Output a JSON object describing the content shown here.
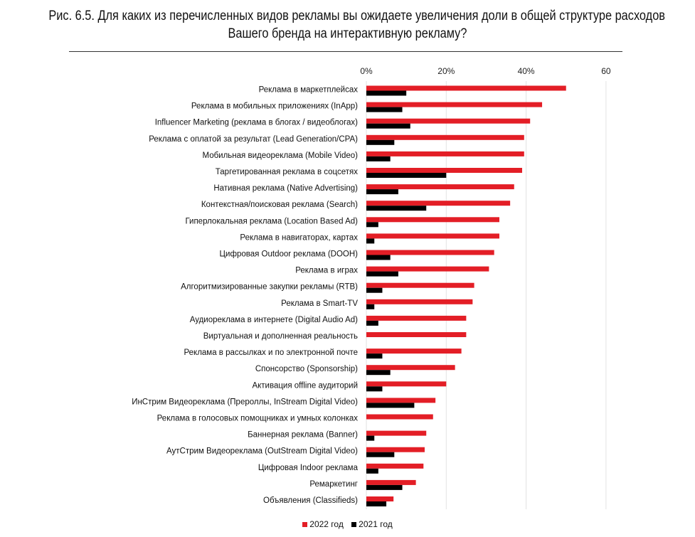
{
  "chart_data": {
    "type": "bar",
    "orientation": "horizontal",
    "title": "Рис. 6.5. Для каких из перечисленных видов рекламы вы ожидаете увеличения доли в общей структуре расходов Вашего бренда на интерактивную рекламу?",
    "title_lines": [
      "Рис. 6.5. Для каких из перечисленных видов рекламы вы ожидаете увеличения доли в общей структуре расходов",
      "Вашего бренда на интерактивную рекламу?"
    ],
    "xlim": [
      0,
      60
    ],
    "x_ticks": [
      "0%",
      "20%",
      "40%",
      "60"
    ],
    "x_tick_values": [
      0,
      20,
      40,
      60
    ],
    "grid": true,
    "legend_position": "bottom",
    "categories": [
      "Реклама в маркетплейсах",
      "Реклама в мобильных приложениях (InApp)",
      "Influencer Marketing (реклама в блогах / видеоблогах)",
      "Реклама с оплатой за результат (Lead Generation/CPA)",
      "Мобильная видеореклама (Mobile Video)",
      "Таргетированная реклама в соцсетях",
      "Нативная реклама (Native Advertising)",
      "Контекстная/поисковая реклама (Search)",
      "Гиперлокальная реклама (Location Based Ad)",
      "Реклама в навигаторах, картах",
      "Цифровая Outdoor реклама (DOOH)",
      "Реклама в играх",
      "Алгоритмизированные закупки рекламы (RTB)",
      "Реклама в Smart-TV",
      "Аудиореклама в интернете (Digital Audio Ad)",
      "Виртуальная и дополненная реальность",
      "Реклама в рассылках и по электронной почте",
      "Спонсорство (Sponsorship)",
      "Активация offline аудиторий",
      "ИнСтрим Видеореклама (Прероллы, InStream Digital Video)",
      "Реклама в голосовых помощниках и умных колонках",
      "Баннерная реклама (Banner)",
      "АутСтрим Видеореклама (OutStream Digital Video)",
      "Цифровая Indoor реклама",
      "Ремаркетинг",
      "Объявления (Classifieds)"
    ],
    "series": [
      {
        "name": "2022 год",
        "color": "#e31e26",
        "values": [
          50,
          44,
          41,
          39.5,
          39.5,
          39,
          37,
          36,
          33.3,
          33.3,
          32,
          30.7,
          27,
          26.6,
          25,
          25,
          23.8,
          22.2,
          20,
          17.3,
          16.7,
          15,
          14.6,
          14.3,
          12.4,
          6.8
        ]
      },
      {
        "name": "2021 год",
        "color": "#000000",
        "values": [
          10,
          9,
          11,
          7,
          6,
          20,
          8,
          15,
          3,
          2,
          6,
          8,
          4,
          2,
          3,
          0,
          4,
          6,
          4,
          12,
          0,
          2,
          7,
          3,
          9,
          5
        ]
      }
    ]
  }
}
